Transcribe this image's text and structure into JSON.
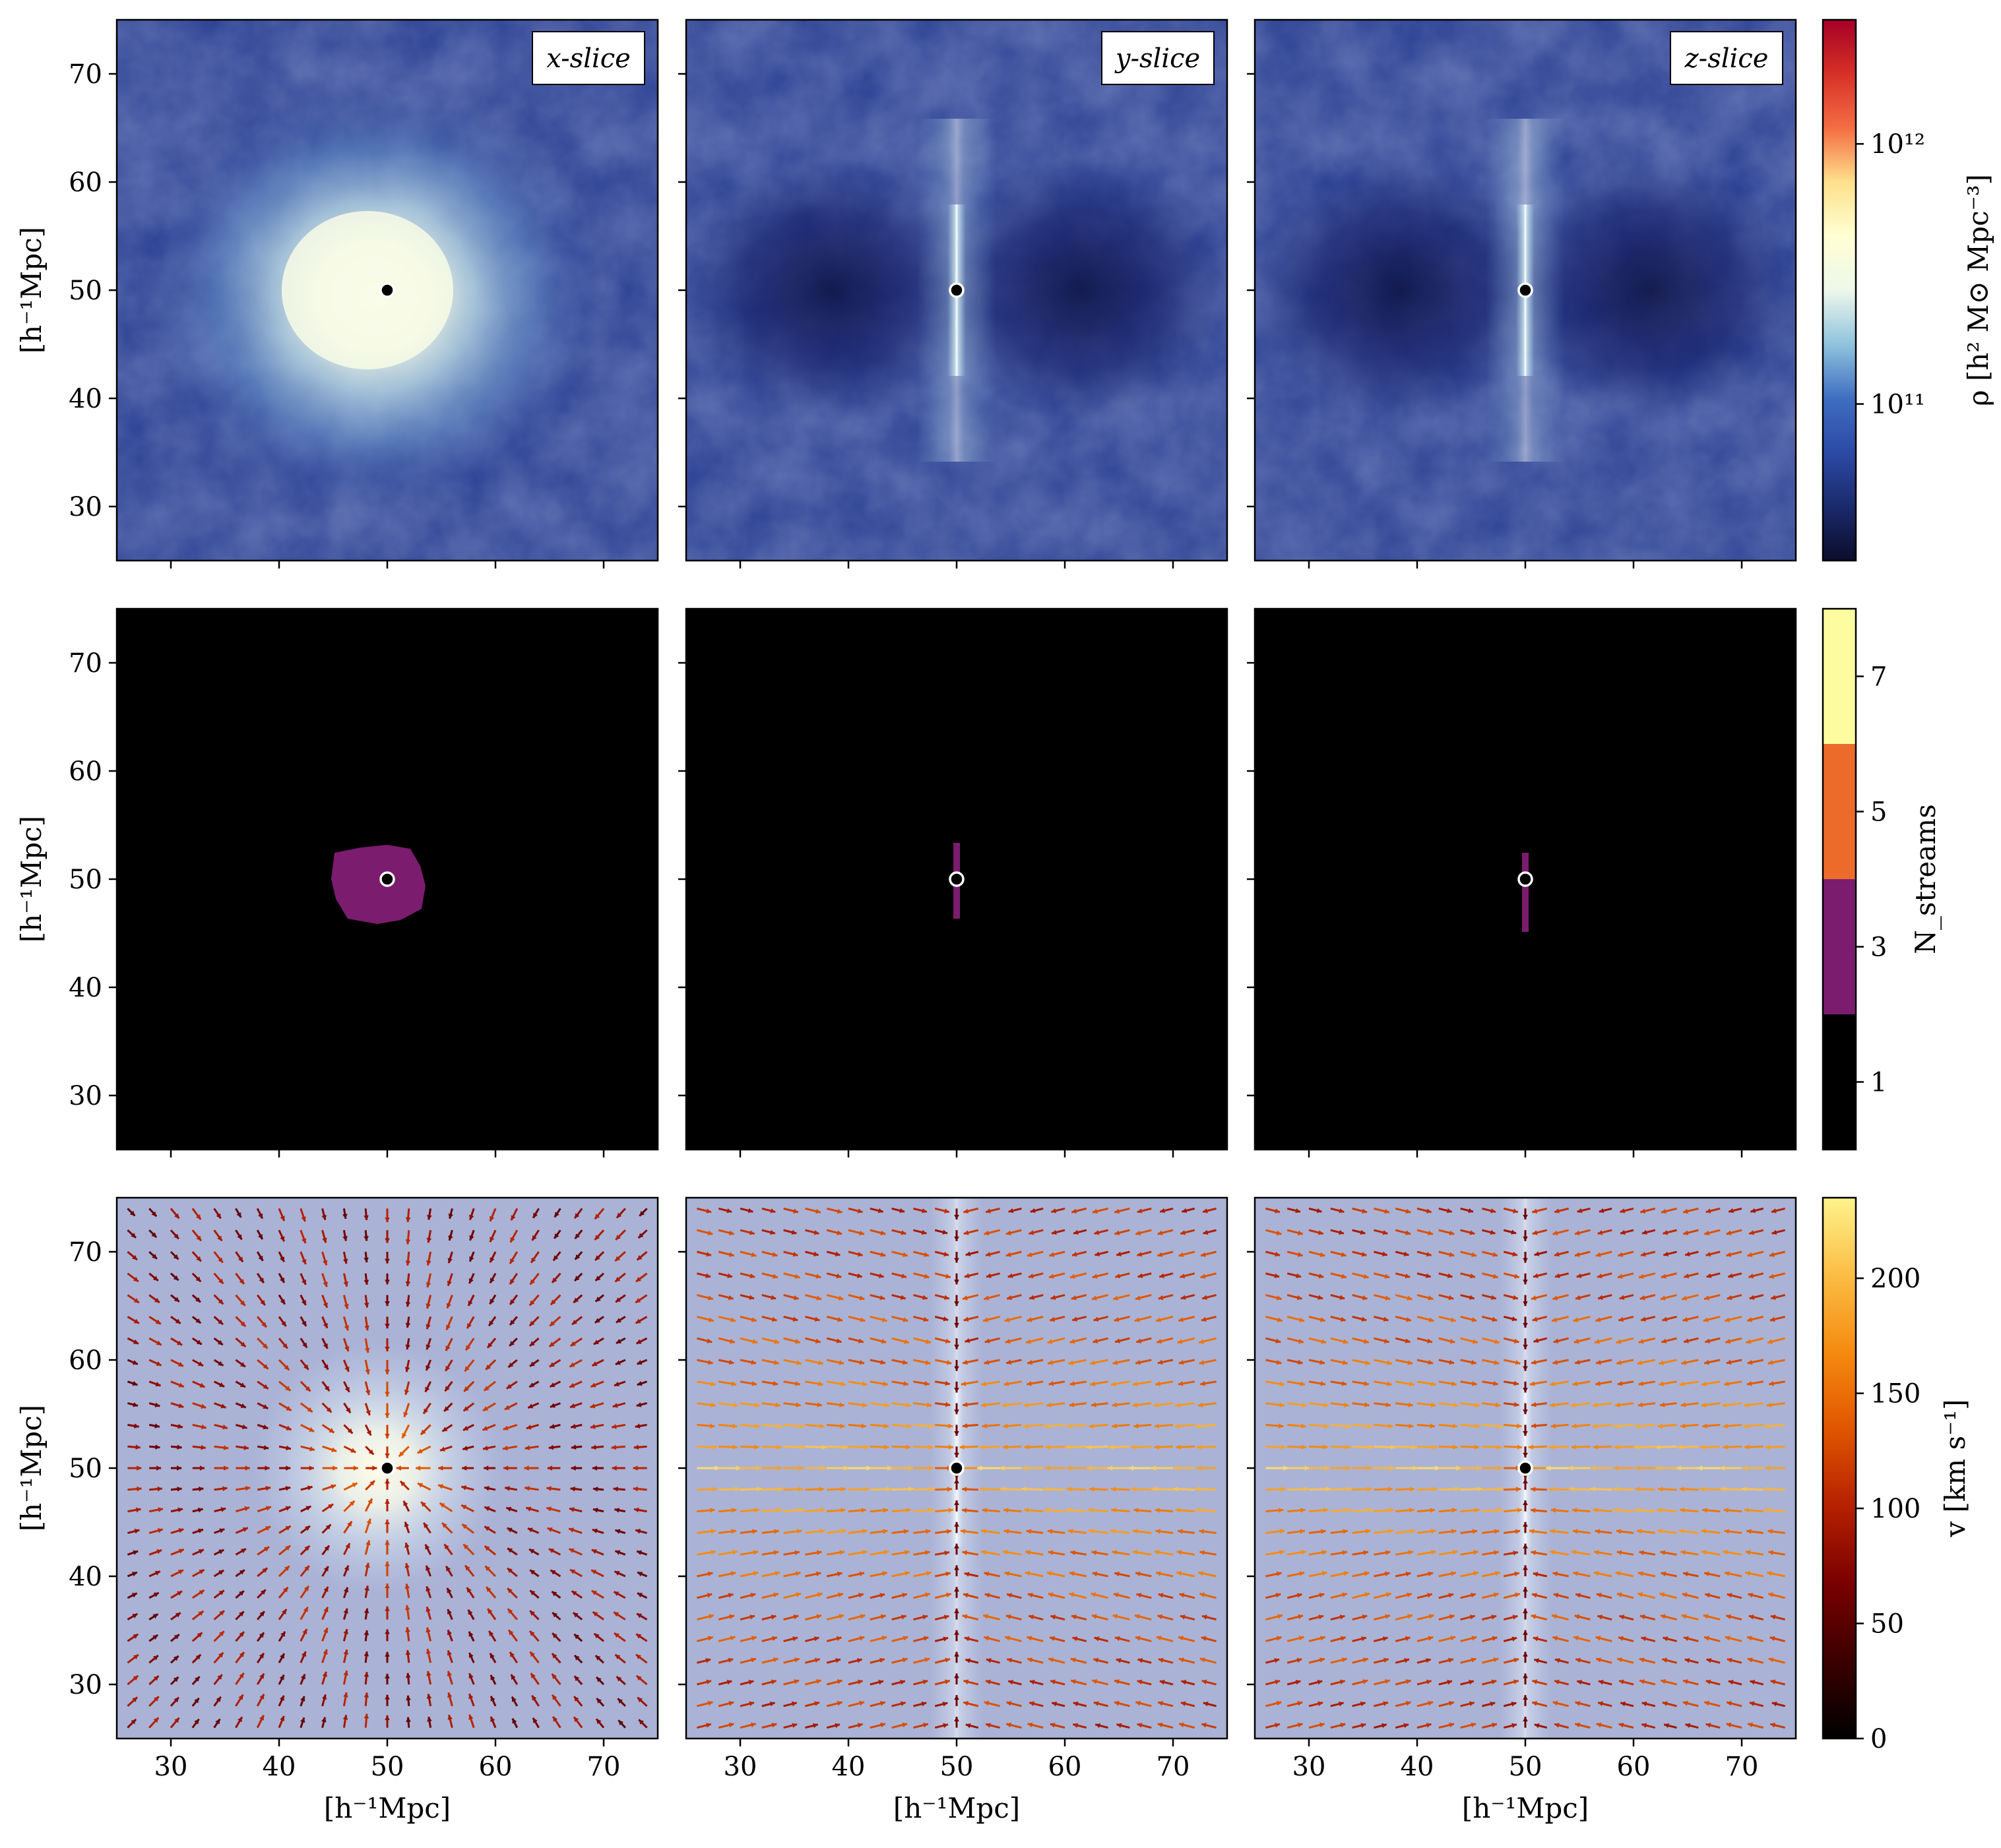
{
  "figure": {
    "row_ylabel": "[h⁻¹Mpc]",
    "col_xlabel": "[h⁻¹Mpc]",
    "slice_labels": [
      "x-slice",
      "y-slice",
      "z-slice"
    ],
    "colors": {
      "density_cmap": [
        "#0b0d2a",
        "#1a2a6c",
        "#2c4aa6",
        "#3f6ec0",
        "#8fc3dd",
        "#eef7ea",
        "#ffffd4",
        "#fee08b",
        "#f46d43",
        "#d73027",
        "#a50026"
      ],
      "stream_colors": [
        "#000000",
        "#7b1c6e",
        "#ec6b2a",
        "#fdfda0"
      ],
      "speed_cmap": [
        "#000000",
        "#3b0000",
        "#7a0000",
        "#b52000",
        "#e05500",
        "#f58a10",
        "#fbbd45",
        "#fef38b"
      ],
      "velocity_bg": "#aab3d6",
      "halo_marker": "#000000"
    }
  },
  "chart_data": [
    {
      "type": "heatmap",
      "row": "density",
      "panels": [
        "x-slice",
        "y-slice",
        "z-slice"
      ],
      "xlim": [
        25,
        75
      ],
      "ylim": [
        25,
        75
      ],
      "xticks": [
        30,
        40,
        50,
        60,
        70
      ],
      "yticks": [
        30,
        40,
        50,
        60,
        70
      ],
      "ylabel": "[h⁻¹Mpc]",
      "halo_center": [
        50,
        50
      ],
      "colorbar": {
        "label": "ρ [h² M⊙ Mpc⁻³]",
        "scale": "log",
        "range": [
          25000000000.0,
          3000000000000.0
        ],
        "ticks": [
          {
            "value": 100000000000.0,
            "label": "10¹¹"
          },
          {
            "value": 1000000000000.0,
            "label": "10¹²"
          }
        ]
      }
    },
    {
      "type": "heatmap",
      "row": "streams",
      "panels": [
        "x-slice",
        "y-slice",
        "z-slice"
      ],
      "xlim": [
        25,
        75
      ],
      "ylim": [
        25,
        75
      ],
      "xticks": [
        30,
        40,
        50,
        60,
        70
      ],
      "yticks": [
        30,
        40,
        50,
        60,
        70
      ],
      "ylabel": "[h⁻¹Mpc]",
      "halo_center": [
        50,
        50
      ],
      "multistream_region_value": 3,
      "colorbar": {
        "label": "N_streams",
        "scale": "discrete",
        "range": [
          0,
          8
        ],
        "levels": [
          1,
          3,
          5,
          7
        ],
        "ticks": [
          {
            "value": 1,
            "label": "1"
          },
          {
            "value": 3,
            "label": "3"
          },
          {
            "value": 5,
            "label": "5"
          },
          {
            "value": 7,
            "label": "7"
          }
        ]
      }
    },
    {
      "type": "scatter",
      "row": "velocity",
      "panels": [
        "x-slice",
        "y-slice",
        "z-slice"
      ],
      "xlim": [
        25,
        75
      ],
      "ylim": [
        25,
        75
      ],
      "xticks": [
        30,
        40,
        50,
        60,
        70
      ],
      "yticks": [
        30,
        40,
        50,
        60,
        70
      ],
      "xlabel": "[h⁻¹Mpc]",
      "ylabel": "[h⁻¹Mpc]",
      "halo_center": [
        50,
        50
      ],
      "colorbar": {
        "label": "v [km s⁻¹]",
        "scale": "linear",
        "range": [
          0,
          235
        ],
        "ticks": [
          {
            "value": 0,
            "label": "0"
          },
          {
            "value": 50,
            "label": "50"
          },
          {
            "value": 100,
            "label": "100"
          },
          {
            "value": 150,
            "label": "150"
          },
          {
            "value": 200,
            "label": "200"
          }
        ]
      }
    }
  ]
}
